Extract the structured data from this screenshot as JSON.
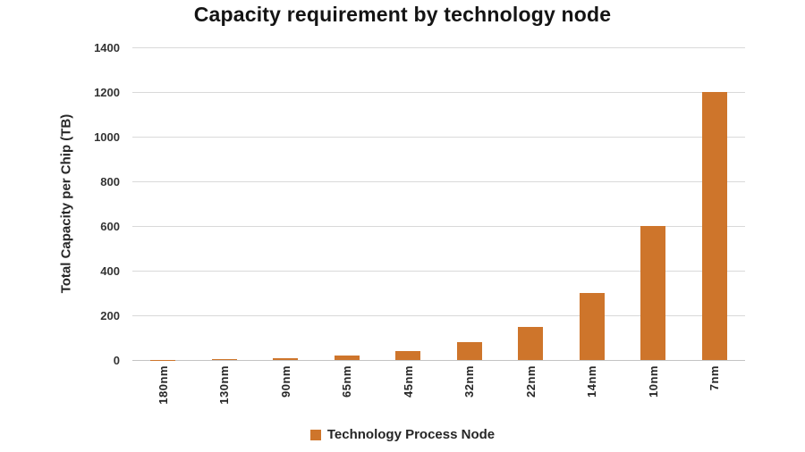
{
  "chart_data": {
    "type": "bar",
    "title": "Capacity requirement by technology node",
    "ylabel": "Total Capacity per Chip (TB)",
    "xlabel": "",
    "categories": [
      "180nm",
      "130nm",
      "90nm",
      "65nm",
      "45nm",
      "32nm",
      "22nm",
      "14nm",
      "10nm",
      "7nm"
    ],
    "values": [
      2,
      5,
      10,
      20,
      40,
      80,
      150,
      300,
      600,
      1200
    ],
    "ylim": [
      0,
      1400
    ],
    "ytick_interval": 200,
    "ytick_labels": [
      "0",
      "200",
      "400",
      "600",
      "800",
      "1000",
      "1200",
      "1400"
    ],
    "grid": true,
    "legend": {
      "label": "Technology Process Node",
      "position": "bottom"
    },
    "colors": {
      "bar": "#CE752B",
      "gridline": "#D9D9D9",
      "axis_line": "#C3C3C3",
      "text": "#262626"
    }
  }
}
